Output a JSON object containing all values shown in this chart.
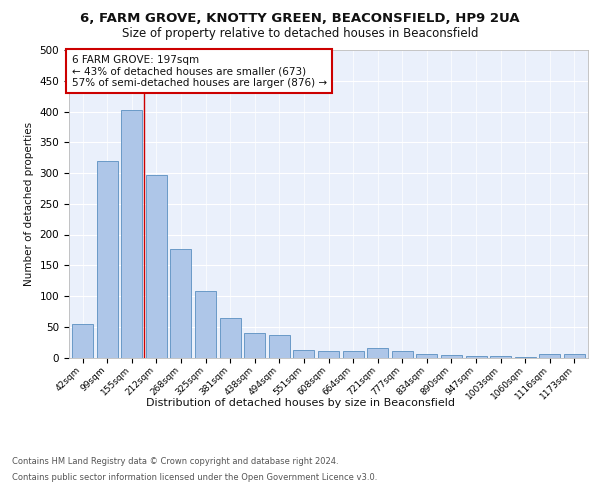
{
  "title1": "6, FARM GROVE, KNOTTY GREEN, BEACONSFIELD, HP9 2UA",
  "title2": "Size of property relative to detached houses in Beaconsfield",
  "xlabel": "Distribution of detached houses by size in Beaconsfield",
  "ylabel": "Number of detached properties",
  "categories": [
    "42sqm",
    "99sqm",
    "155sqm",
    "212sqm",
    "268sqm",
    "325sqm",
    "381sqm",
    "438sqm",
    "494sqm",
    "551sqm",
    "608sqm",
    "664sqm",
    "721sqm",
    "777sqm",
    "834sqm",
    "890sqm",
    "947sqm",
    "1003sqm",
    "1060sqm",
    "1116sqm",
    "1173sqm"
  ],
  "values": [
    54,
    320,
    402,
    297,
    176,
    108,
    65,
    40,
    36,
    12,
    11,
    11,
    16,
    10,
    6,
    4,
    2,
    2,
    1,
    6,
    6
  ],
  "bar_color": "#aec6e8",
  "bar_edge_color": "#5a8fc0",
  "vline_x": 2.5,
  "vline_color": "#cc0000",
  "annotation_text": "6 FARM GROVE: 197sqm\n← 43% of detached houses are smaller (673)\n57% of semi-detached houses are larger (876) →",
  "annotation_box_color": "#ffffff",
  "annotation_box_edge": "#cc0000",
  "annotation_fontsize": 7.5,
  "footer1": "Contains HM Land Registry data © Crown copyright and database right 2024.",
  "footer2": "Contains public sector information licensed under the Open Government Licence v3.0.",
  "background_color": "#eaf0fb",
  "ylim": [
    0,
    500
  ],
  "yticks": [
    0,
    50,
    100,
    150,
    200,
    250,
    300,
    350,
    400,
    450,
    500
  ]
}
